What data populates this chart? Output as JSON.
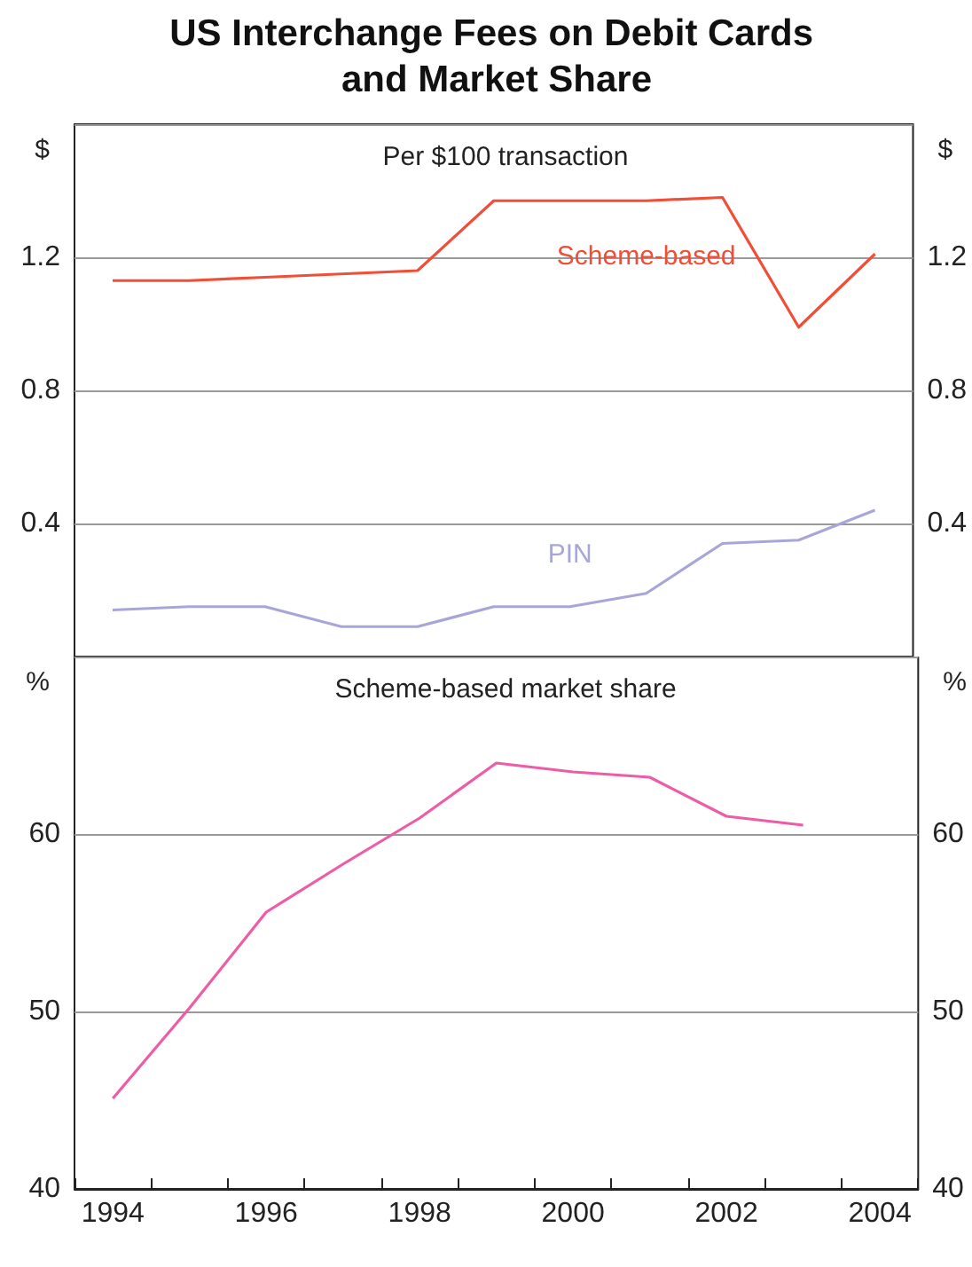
{
  "chart_data": [
    {
      "type": "line",
      "title": "US Interchange Fees on Debit Cards and Market Share",
      "subtitle": "Per $100 transaction",
      "ylabel": "$",
      "y2label": "$",
      "categories": [
        "1994",
        null,
        "1996",
        null,
        "1998",
        null,
        "2000",
        null,
        "2002",
        null,
        "2004"
      ],
      "series": [
        {
          "name": "Scheme-based",
          "color": "#f04e37",
          "values": [
            1.13,
            1.13,
            1.14,
            1.15,
            1.16,
            1.37,
            1.37,
            1.37,
            1.38,
            0.99,
            1.21
          ]
        },
        {
          "name": "PIN",
          "color": "#a8a6d8",
          "values": [
            0.14,
            0.15,
            0.15,
            0.09,
            0.09,
            0.15,
            0.15,
            0.19,
            0.34,
            0.35,
            0.44
          ]
        }
      ],
      "ylim": [
        0,
        1.6
      ],
      "yticks": [
        0.4,
        0.8,
        1.2
      ],
      "y2lim": [
        0,
        1.6
      ],
      "y2ticks": [
        0.4,
        0.8,
        1.2
      ],
      "grid": "y",
      "tick_labels": "y"
    },
    {
      "type": "line",
      "title": "Scheme-based market share",
      "ylabel": "%",
      "y2label": "%",
      "categories": [
        "1994",
        null,
        "1996",
        null,
        "1998",
        null,
        "2000",
        null,
        "2002",
        null,
        "2004"
      ],
      "series": [
        {
          "color": "#ee5ba6",
          "values": [
            45.1,
            50.2,
            55.6,
            58.3,
            60.9,
            64.0,
            63.5,
            63.2,
            61.0,
            60.5,
            null
          ]
        }
      ],
      "ylim": [
        40,
        70
      ],
      "yticks": [
        40,
        50,
        60
      ],
      "y2lim": [
        40,
        70
      ],
      "y2ticks": [
        40,
        50,
        60
      ],
      "grid": "y"
    }
  ]
}
